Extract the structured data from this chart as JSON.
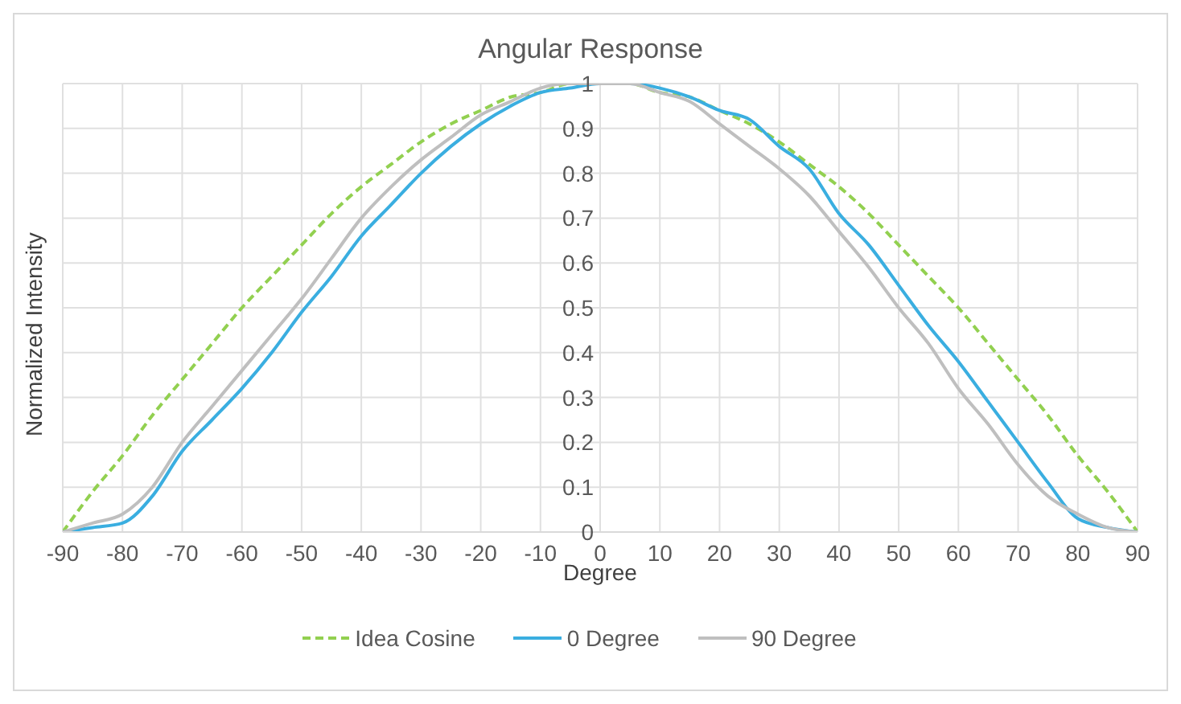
{
  "chart_data": {
    "type": "line",
    "title": "Angular Response",
    "xlabel": "Degree",
    "ylabel": "Normalized Intensity",
    "x": [
      -90,
      -85,
      -80,
      -75,
      -70,
      -65,
      -60,
      -55,
      -50,
      -45,
      -40,
      -35,
      -30,
      -25,
      -20,
      -15,
      -10,
      -5,
      0,
      5,
      10,
      15,
      20,
      25,
      30,
      35,
      40,
      45,
      50,
      55,
      60,
      65,
      70,
      75,
      80,
      85,
      90
    ],
    "series": [
      {
        "name": "Idea Cosine",
        "color": "#92d050",
        "line_style": "dashed",
        "values": [
          0,
          0.09,
          0.17,
          0.26,
          0.34,
          0.42,
          0.5,
          0.57,
          0.64,
          0.71,
          0.77,
          0.82,
          0.87,
          0.91,
          0.94,
          0.97,
          0.98,
          1,
          1,
          1,
          0.98,
          0.97,
          0.94,
          0.91,
          0.87,
          0.82,
          0.77,
          0.71,
          0.64,
          0.57,
          0.5,
          0.42,
          0.34,
          0.26,
          0.17,
          0.09,
          0
        ]
      },
      {
        "name": "0 Degree",
        "color": "#3aaee0",
        "line_style": "solid",
        "values": [
          0,
          0.01,
          0.02,
          0.08,
          0.18,
          0.25,
          0.32,
          0.4,
          0.49,
          0.57,
          0.66,
          0.73,
          0.8,
          0.86,
          0.91,
          0.95,
          0.98,
          0.99,
          1,
          1,
          0.99,
          0.97,
          0.94,
          0.92,
          0.86,
          0.81,
          0.71,
          0.64,
          0.55,
          0.46,
          0.38,
          0.29,
          0.2,
          0.11,
          0.03,
          0.01,
          0
        ]
      },
      {
        "name": "90 Degree",
        "color": "#bfbfbf",
        "line_style": "solid",
        "values": [
          0,
          0.02,
          0.04,
          0.1,
          0.2,
          0.28,
          0.36,
          0.44,
          0.52,
          0.61,
          0.7,
          0.77,
          0.83,
          0.88,
          0.93,
          0.96,
          0.99,
          1,
          1,
          1,
          0.98,
          0.96,
          0.91,
          0.86,
          0.81,
          0.75,
          0.67,
          0.59,
          0.5,
          0.42,
          0.32,
          0.24,
          0.15,
          0.08,
          0.04,
          0.01,
          0
        ]
      }
    ],
    "xlim": [
      -90,
      90
    ],
    "xticks": [
      -90,
      -80,
      -70,
      -60,
      -50,
      -40,
      -30,
      -20,
      -10,
      0,
      10,
      20,
      30,
      40,
      50,
      60,
      70,
      80,
      90
    ],
    "ylim": [
      0,
      1
    ],
    "yticks": [
      0,
      0.1,
      0.2,
      0.3,
      0.4,
      0.5,
      0.6,
      0.7,
      0.8,
      0.9,
      1
    ],
    "grid": true,
    "legend": "bottom",
    "marker": "none"
  }
}
